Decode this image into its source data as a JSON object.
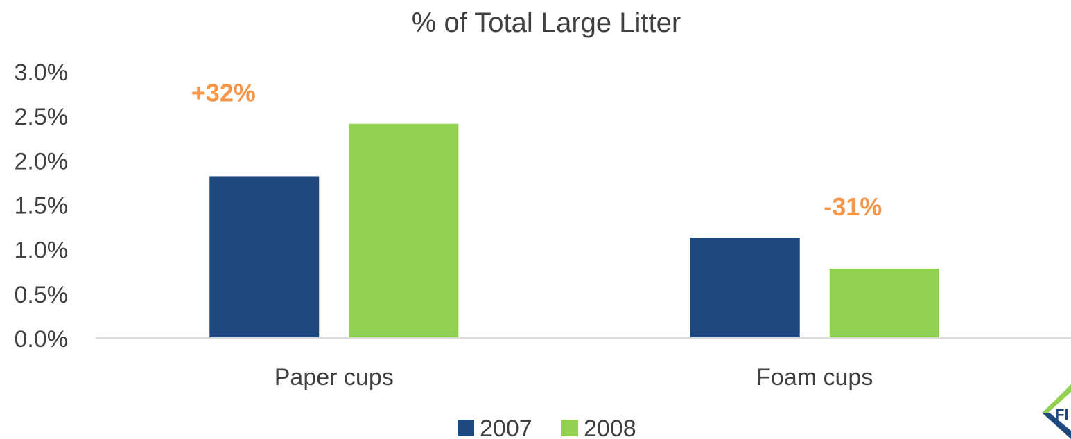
{
  "chart_data": {
    "type": "bar",
    "title": "% of Total Large Litter",
    "categories": [
      "Paper cups",
      "Foam cups"
    ],
    "series": [
      {
        "name": "2007",
        "values": [
          1.82,
          1.13
        ],
        "color": "#1F497D"
      },
      {
        "name": "2008",
        "values": [
          2.41,
          0.78
        ],
        "color": "#92D050"
      }
    ],
    "ylim": [
      0,
      3.0
    ],
    "yticks": [
      "0.0%",
      "0.5%",
      "1.0%",
      "1.5%",
      "2.0%",
      "2.5%",
      "3.0%"
    ],
    "ytick_values": [
      0,
      0.5,
      1.0,
      1.5,
      2.0,
      2.5,
      3.0
    ],
    "xlabel": "",
    "ylabel": "",
    "grid": false,
    "legend_position": "bottom",
    "annotations": [
      {
        "text": "+32%",
        "category": "Paper cups",
        "color": "#F79646"
      },
      {
        "text": "-31%",
        "category": "Foam cups",
        "color": "#F79646"
      }
    ]
  },
  "logo": {
    "text": "FI",
    "icon": "company-logo-icon",
    "colors": [
      "#1F497D",
      "#92D050"
    ]
  }
}
